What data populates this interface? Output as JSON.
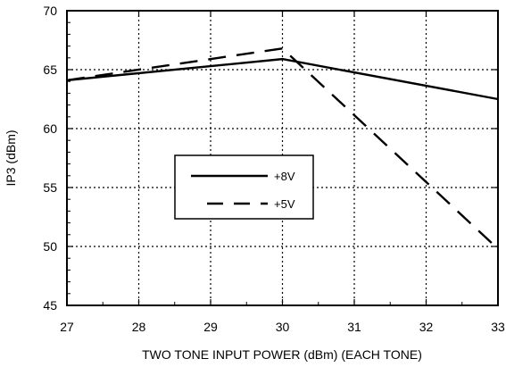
{
  "chart_data": {
    "type": "line",
    "title": "",
    "xlabel": "TWO TONE INPUT POWER (dBm) (EACH TONE)",
    "ylabel": "IP3  (dBm)",
    "xlim": [
      27,
      33
    ],
    "ylim": [
      45,
      70
    ],
    "xticks": [
      27,
      28,
      29,
      30,
      31,
      32,
      33
    ],
    "yticks": [
      45,
      50,
      55,
      60,
      65,
      70
    ],
    "grid": true,
    "legend_position": "center-left",
    "series": [
      {
        "name": "+8V",
        "style": "solid",
        "color": "#000000",
        "x": [
          27,
          30,
          33
        ],
        "y": [
          64.1,
          65.9,
          62.5
        ]
      },
      {
        "name": "+5V",
        "style": "dashed",
        "color": "#000000",
        "x": [
          27,
          30,
          33
        ],
        "y": [
          64.1,
          66.8,
          49.8
        ]
      }
    ]
  }
}
